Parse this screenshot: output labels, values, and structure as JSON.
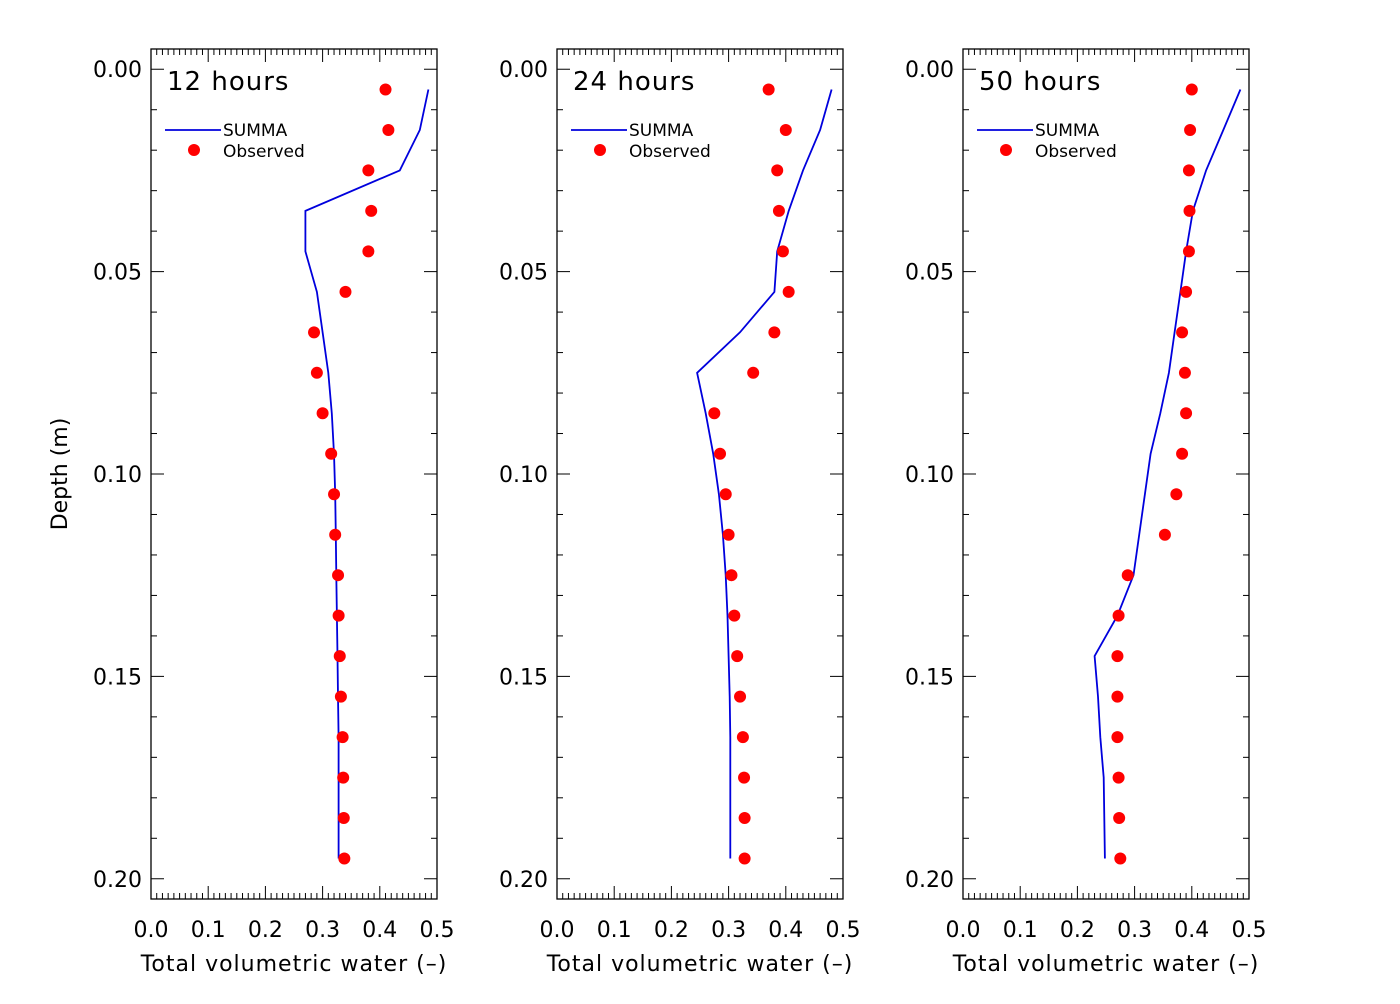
{
  "chart_data": [
    {
      "type": "line",
      "title": "12 hours",
      "xlabel": "Total volumetric water (–)",
      "ylabel": "Depth (m)",
      "xlim": [
        0.0,
        0.5
      ],
      "ylim": [
        0.205,
        -0.005
      ],
      "xticks": [
        "0.0",
        "0.1",
        "0.2",
        "0.3",
        "0.4",
        "0.5"
      ],
      "yticks": [
        "0.00",
        "0.05",
        "0.10",
        "0.15",
        "0.20"
      ],
      "legend": [
        "SUMMA",
        "Observed"
      ],
      "series": [
        {
          "name": "SUMMA",
          "kind": "line",
          "color": "#0000dd",
          "x": [
            0.485,
            0.47,
            0.435,
            0.27,
            0.27,
            0.29,
            0.3,
            0.31,
            0.316,
            0.32,
            0.322,
            0.323,
            0.324,
            0.325,
            0.326,
            0.327,
            0.328,
            0.328,
            0.328
          ],
          "y": [
            0.005,
            0.015,
            0.025,
            0.035,
            0.045,
            0.055,
            0.065,
            0.075,
            0.085,
            0.095,
            0.105,
            0.115,
            0.125,
            0.135,
            0.145,
            0.155,
            0.165,
            0.175,
            0.195
          ]
        },
        {
          "name": "Observed",
          "kind": "points",
          "color": "#ff0000",
          "x": [
            0.41,
            0.415,
            0.38,
            0.385,
            0.38,
            0.34,
            0.285,
            0.29,
            0.3,
            0.315,
            0.32,
            0.322,
            0.327,
            0.328,
            0.33,
            0.332,
            0.335,
            0.336,
            0.337,
            0.338
          ],
          "y": [
            0.005,
            0.015,
            0.025,
            0.035,
            0.045,
            0.055,
            0.065,
            0.075,
            0.085,
            0.095,
            0.105,
            0.115,
            0.125,
            0.135,
            0.145,
            0.155,
            0.165,
            0.175,
            0.185,
            0.195
          ]
        }
      ]
    },
    {
      "type": "line",
      "title": "24 hours",
      "xlabel": "Total volumetric water (–)",
      "ylabel": "",
      "xlim": [
        0.0,
        0.5
      ],
      "ylim": [
        0.205,
        -0.005
      ],
      "xticks": [
        "0.0",
        "0.1",
        "0.2",
        "0.3",
        "0.4",
        "0.5"
      ],
      "yticks": [
        "0.00",
        "0.05",
        "0.10",
        "0.15",
        "0.20"
      ],
      "legend": [
        "SUMMA",
        "Observed"
      ],
      "series": [
        {
          "name": "SUMMA",
          "kind": "line",
          "color": "#0000dd",
          "x": [
            0.48,
            0.46,
            0.43,
            0.405,
            0.385,
            0.38,
            0.32,
            0.245,
            0.26,
            0.273,
            0.283,
            0.29,
            0.295,
            0.298,
            0.3,
            0.302,
            0.303,
            0.303
          ],
          "y": [
            0.005,
            0.015,
            0.025,
            0.035,
            0.045,
            0.055,
            0.065,
            0.075,
            0.085,
            0.095,
            0.105,
            0.115,
            0.125,
            0.135,
            0.145,
            0.155,
            0.165,
            0.195
          ]
        },
        {
          "name": "Observed",
          "kind": "points",
          "color": "#ff0000",
          "x": [
            0.37,
            0.4,
            0.385,
            0.388,
            0.395,
            0.405,
            0.38,
            0.343,
            0.275,
            0.285,
            0.295,
            0.3,
            0.305,
            0.31,
            0.315,
            0.32,
            0.325,
            0.327,
            0.328,
            0.328
          ],
          "y": [
            0.005,
            0.015,
            0.025,
            0.035,
            0.045,
            0.055,
            0.065,
            0.075,
            0.085,
            0.095,
            0.105,
            0.115,
            0.125,
            0.135,
            0.145,
            0.155,
            0.165,
            0.175,
            0.185,
            0.195
          ]
        }
      ]
    },
    {
      "type": "line",
      "title": "50 hours",
      "xlabel": "Total volumetric water (–)",
      "ylabel": "",
      "xlim": [
        0.0,
        0.5
      ],
      "ylim": [
        0.205,
        -0.005
      ],
      "xticks": [
        "0.0",
        "0.1",
        "0.2",
        "0.3",
        "0.4",
        "0.5"
      ],
      "yticks": [
        "0.00",
        "0.05",
        "0.10",
        "0.15",
        "0.20"
      ],
      "legend": [
        "SUMMA",
        "Observed"
      ],
      "series": [
        {
          "name": "SUMMA",
          "kind": "line",
          "color": "#0000dd",
          "x": [
            0.485,
            0.455,
            0.425,
            0.402,
            0.39,
            0.38,
            0.37,
            0.36,
            0.345,
            0.328,
            0.318,
            0.308,
            0.298,
            0.27,
            0.23,
            0.236,
            0.24,
            0.246,
            0.248
          ],
          "y": [
            0.005,
            0.015,
            0.025,
            0.035,
            0.045,
            0.055,
            0.065,
            0.075,
            0.085,
            0.095,
            0.105,
            0.115,
            0.125,
            0.135,
            0.145,
            0.155,
            0.165,
            0.175,
            0.195
          ]
        },
        {
          "name": "Observed",
          "kind": "points",
          "color": "#ff0000",
          "x": [
            0.4,
            0.397,
            0.395,
            0.396,
            0.395,
            0.39,
            0.383,
            0.388,
            0.39,
            0.383,
            0.373,
            0.353,
            0.288,
            0.272,
            0.27,
            0.27,
            0.27,
            0.272,
            0.273,
            0.275
          ],
          "y": [
            0.005,
            0.015,
            0.025,
            0.035,
            0.045,
            0.055,
            0.065,
            0.075,
            0.085,
            0.095,
            0.105,
            0.115,
            0.125,
            0.135,
            0.145,
            0.155,
            0.165,
            0.175,
            0.185,
            0.195
          ]
        }
      ]
    }
  ]
}
